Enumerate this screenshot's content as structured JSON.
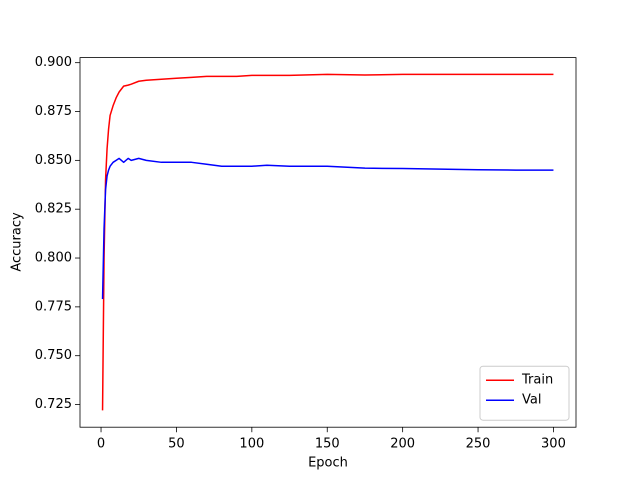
{
  "chart_data": {
    "type": "line",
    "xlabel": "Epoch",
    "ylabel": "Accuracy",
    "x": [
      1,
      2,
      3,
      4,
      5,
      6,
      8,
      10,
      12,
      15,
      18,
      20,
      25,
      30,
      40,
      50,
      60,
      70,
      80,
      90,
      100,
      110,
      125,
      150,
      175,
      200,
      225,
      250,
      275,
      300
    ],
    "series": [
      {
        "name": "Train",
        "color": "#ff0000",
        "values": [
          0.722,
          0.8,
          0.84,
          0.856,
          0.866,
          0.873,
          0.878,
          0.882,
          0.885,
          0.888,
          0.8885,
          0.889,
          0.8905,
          0.891,
          0.8915,
          0.892,
          0.8925,
          0.893,
          0.893,
          0.893,
          0.8935,
          0.8935,
          0.8935,
          0.894,
          0.8937,
          0.894,
          0.894,
          0.894,
          0.894,
          0.894
        ]
      },
      {
        "name": "Val",
        "color": "#0000ff",
        "values": [
          0.779,
          0.815,
          0.835,
          0.842,
          0.845,
          0.847,
          0.849,
          0.85,
          0.851,
          0.849,
          0.851,
          0.85,
          0.851,
          0.85,
          0.849,
          0.849,
          0.849,
          0.848,
          0.847,
          0.847,
          0.847,
          0.8475,
          0.847,
          0.847,
          0.846,
          0.8458,
          0.8455,
          0.8452,
          0.845,
          0.845
        ]
      }
    ],
    "xlim": [
      -13.95,
      314.95
    ],
    "xticks": [
      0,
      50,
      100,
      150,
      200,
      250,
      300
    ],
    "ylim": [
      0.7134,
      0.9026
    ],
    "yticks": [
      {
        "value": 0.725,
        "label": "0.725"
      },
      {
        "value": 0.75,
        "label": "0.750"
      },
      {
        "value": 0.775,
        "label": "0.775"
      },
      {
        "value": 0.8,
        "label": "0.800"
      },
      {
        "value": 0.825,
        "label": "0.825"
      },
      {
        "value": 0.85,
        "label": "0.850"
      },
      {
        "value": 0.875,
        "label": "0.875"
      },
      {
        "value": 0.9,
        "label": "0.900"
      }
    ],
    "legend": "lower right",
    "grid": false
  }
}
